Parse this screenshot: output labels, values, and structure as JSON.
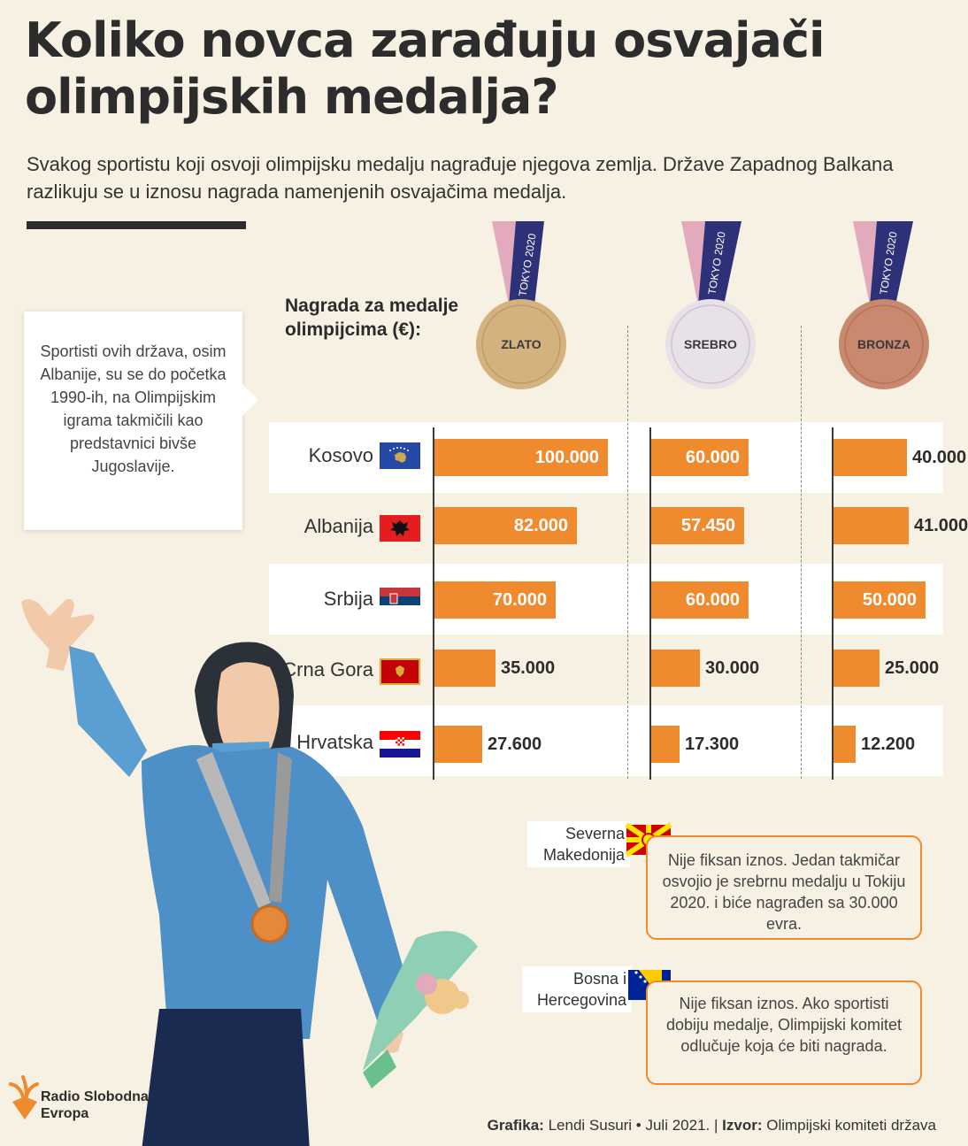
{
  "title": "Koliko novca zarađuju osvajači olimpijskih medalja?",
  "subtitle": "Svakog sportistu koji osvoji olimpijsku medalju nagrađuje njegova zemlja. Države Zapadnog Balkana razlikuju se u iznosu nagrada namenjenih osvajačima medalja.",
  "header_label": "Nagrada za medalje olimpijcima (€):",
  "callout": "Sportisti ovih država, osim Albanije, su se do početka 1990-ih, na Olimpijskim igrama takmičili kao predstavnici bivše Jugoslavije.",
  "ribbon_text": "TOKYO 2020",
  "medals": [
    {
      "label": "ZLATO",
      "color": "#d4b27f"
    },
    {
      "label": "SREBRO",
      "color": "#e8e1e8"
    },
    {
      "label": "BRONZA",
      "color": "#c9896e"
    }
  ],
  "chart_data": {
    "type": "bar",
    "title": "Nagrada za medalje olimpijcima (€):",
    "categories": [
      "Kosovo",
      "Albanija",
      "Srbija",
      "Crna Gora",
      "Hrvatska"
    ],
    "series": [
      {
        "name": "ZLATO",
        "values": [
          100000,
          82000,
          70000,
          35000,
          27600
        ],
        "labels": [
          "100.000",
          "82.000",
          "70.000",
          "35.000",
          "27.600"
        ]
      },
      {
        "name": "SREBRO",
        "values": [
          60000,
          57450,
          60000,
          30000,
          17300
        ],
        "labels": [
          "60.000",
          "57.450",
          "60.000",
          "30.000",
          "17.300"
        ]
      },
      {
        "name": "BRONZA",
        "values": [
          40000,
          41000,
          50000,
          25000,
          12200
        ],
        "labels": [
          "40.000",
          "41.000",
          "50.000",
          "25.000",
          "12.200"
        ]
      }
    ]
  },
  "notes": [
    {
      "country": "Severna Makedonija",
      "text": "Nije fiksan iznos. Jedan takmičar osvojio je srebrnu medalju u Tokiju 2020. i biće nagrađen sa 30.000 evra."
    },
    {
      "country": "Bosna i Hercegovina",
      "text": "Nije fiksan iznos. Ako sportisti dobiju medalje, Olimpijski komitet odlučuje koja će biti nagrada."
    }
  ],
  "logo": {
    "line1": "Radio Slobodna",
    "line2": "Evropa"
  },
  "credits": {
    "grafika_label": "Grafika:",
    "grafika_value": "Lendi Susuri • Juli 2021.",
    "izvor_label": "Izvor:",
    "izvor_value": "Olimpijski komiteti država"
  },
  "colors": {
    "bar": "#f08a2f",
    "background": "#f6f1e2",
    "ribbon_blue": "#2d3278",
    "ribbon_pink": "#e3a9bd"
  }
}
